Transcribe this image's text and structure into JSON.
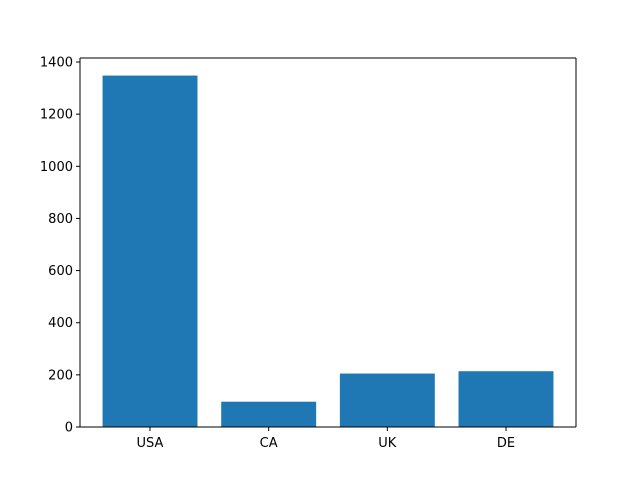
{
  "chart_data": {
    "type": "bar",
    "title": "",
    "xlabel": "",
    "ylabel": "",
    "categories": [
      "USA",
      "CA",
      "UK",
      "DE"
    ],
    "values": [
      1348,
      97,
      205,
      214
    ],
    "ylim": [
      0,
      1400
    ],
    "yticks": [
      0,
      200,
      400,
      600,
      800,
      1000,
      1200,
      1400
    ],
    "ytick_labels": [
      "0",
      "200",
      "400",
      "600",
      "800",
      "1000",
      "1200",
      "1400"
    ],
    "bar_color": "#1f77b4",
    "grid": false,
    "legend": "none"
  }
}
